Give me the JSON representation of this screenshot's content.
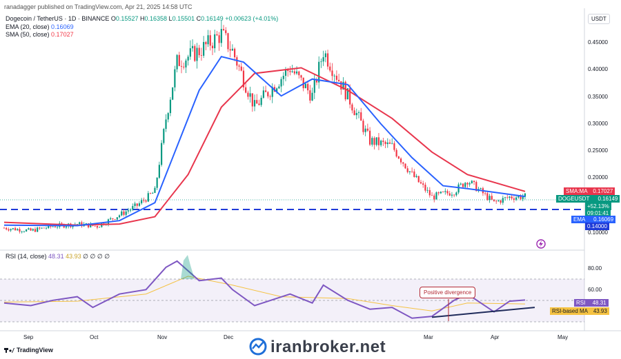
{
  "header": {
    "published_by": "ranadagger published on TradingView.com, Apr 21, 2025 14:58 UTC"
  },
  "legend": {
    "symbol": "Dogecoin / TetherUS · 1D · BINANCE",
    "ohlc_prefix_o": "O",
    "o": "0.15527",
    "ohlc_prefix_h": "H",
    "h": "0.16358",
    "ohlc_prefix_l": "L",
    "l": "0.15501",
    "ohlc_prefix_c": "C",
    "c": "0.16149",
    "change": "+0.00623 (+4.01%)",
    "ema_label": "EMA (20, close)",
    "ema_value": "0.16069",
    "sma_label": "SMA (50, close)",
    "sma_value": "0.17027"
  },
  "rsi_legend": {
    "label": "RSI (14, close)",
    "rsi": "48.31",
    "ma": "43.93",
    "z1": "∅",
    "z2": "∅",
    "z3": "∅",
    "z4": "∅"
  },
  "price_axis": {
    "currency": "USDT",
    "labels": [
      "0.45000",
      "0.40000",
      "0.35000",
      "0.30000",
      "0.25000",
      "0.20000",
      "0.10000"
    ],
    "sma_tag": "SMA:MA",
    "sma_tag_value": "0.17027",
    "symbol_tag": "DOGEUSDT",
    "symbol_tag_value": "0.16149",
    "pct_tag": "+52.13%",
    "time_tag": "09:01:41",
    "ema_tag": "EMA",
    "ema_tag_value": "0.16069",
    "support_tag_value": "0.14000"
  },
  "rsi_axis": {
    "labels": [
      "80.00",
      "60.00"
    ],
    "rsi_tag": "RSI",
    "rsi_tag_value": "48.31",
    "ma_tag": "RSI-based MA",
    "ma_tag_value": "43.93"
  },
  "time_axis": {
    "labels": [
      "Sep",
      "Oct",
      "Nov",
      "Dec",
      "Mar",
      "Apr",
      "May"
    ]
  },
  "annotation": {
    "text": "Positive divergence"
  },
  "footer": {
    "logo": "TradingView",
    "watermark": "iranbroker.net"
  },
  "colors": {
    "up": "#089981",
    "down": "#f23645",
    "ema": "#2962ff",
    "sma": "#e8364d",
    "rsi": "#7e57c2",
    "rsi_ma": "#f5c242",
    "support": "#1f3bd8"
  },
  "chart_data": [
    {
      "type": "candlestick",
      "title": "Dogecoin / TetherUS · 1D · BINANCE",
      "y_axis": "USDT",
      "ylim": [
        0.09,
        0.48
      ],
      "x_ticks": [
        "Sep",
        "Oct",
        "Nov",
        "Dec",
        "Mar",
        "Apr",
        "May"
      ],
      "support_line": 0.14,
      "price_path": [
        [
          "Aug 29",
          0.105
        ],
        [
          "Sep 10",
          0.1
        ],
        [
          "Sep 20",
          0.108
        ],
        [
          "Oct 1",
          0.112
        ],
        [
          "Oct 10",
          0.108
        ],
        [
          "Oct 20",
          0.128
        ],
        [
          "Oct 28",
          0.145
        ],
        [
          "Nov 5",
          0.17
        ],
        [
          "Nov 10",
          0.3
        ],
        [
          "Nov 15",
          0.4
        ],
        [
          "Nov 25",
          0.42
        ],
        [
          "Dec 5",
          0.45
        ],
        [
          "Dec 10",
          0.42
        ],
        [
          "Dec 20",
          0.32
        ],
        [
          "Jan 5",
          0.39
        ],
        [
          "Jan 15",
          0.34
        ],
        [
          "Jan 20",
          0.42
        ],
        [
          "Jan 31",
          0.34
        ],
        [
          "Feb 10",
          0.26
        ],
        [
          "Feb 20",
          0.25
        ],
        [
          "Mar 1",
          0.2
        ],
        [
          "Mar 10",
          0.16
        ],
        [
          "Mar 20",
          0.17
        ],
        [
          "Mar 26",
          0.19
        ],
        [
          "Apr 7",
          0.15
        ],
        [
          "Apr 14",
          0.16
        ],
        [
          "Apr 21",
          0.161
        ]
      ],
      "series": [
        {
          "name": "EMA (20, close)",
          "points": [
            [
              "Aug 29",
              0.11
            ],
            [
              "Oct 1",
              0.109
            ],
            [
              "Oct 20",
              0.118
            ],
            [
              "Nov 5",
              0.15
            ],
            [
              "Nov 15",
              0.25
            ],
            [
              "Nov 25",
              0.35
            ],
            [
              "Dec 5",
              0.41
            ],
            [
              "Dec 15",
              0.4
            ],
            [
              "Jan 1",
              0.34
            ],
            [
              "Jan 15",
              0.37
            ],
            [
              "Jan 31",
              0.36
            ],
            [
              "Feb 15",
              0.29
            ],
            [
              "Mar 1",
              0.23
            ],
            [
              "Mar 15",
              0.18
            ],
            [
              "Mar 26",
              0.175
            ],
            [
              "Apr 21",
              0.161
            ]
          ]
        },
        {
          "name": "SMA (50, close)",
          "points": [
            [
              "Aug 29",
              0.115
            ],
            [
              "Oct 1",
              0.11
            ],
            [
              "Oct 20",
              0.112
            ],
            [
              "Nov 5",
              0.125
            ],
            [
              "Nov 20",
              0.2
            ],
            [
              "Dec 5",
              0.32
            ],
            [
              "Dec 20",
              0.38
            ],
            [
              "Jan 10",
              0.39
            ],
            [
              "Jan 31",
              0.35
            ],
            [
              "Feb 20",
              0.3
            ],
            [
              "Mar 10",
              0.24
            ],
            [
              "Mar 26",
              0.2
            ],
            [
              "Apr 21",
              0.17
            ]
          ]
        }
      ]
    },
    {
      "type": "line",
      "title": "RSI (14, close)",
      "ylim": [
        20,
        95
      ],
      "y_ticks": [
        80,
        60
      ],
      "band": [
        30,
        70
      ],
      "series": [
        {
          "name": "RSI",
          "points": [
            [
              "Aug 29",
              45
            ],
            [
              "Sep 10",
              42
            ],
            [
              "Sep 20",
              48
            ],
            [
              "Oct 1",
              52
            ],
            [
              "Oct 8",
              40
            ],
            [
              "Oct 20",
              55
            ],
            [
              "Nov 1",
              60
            ],
            [
              "Nov 10",
              85
            ],
            [
              "Nov 15",
              92
            ],
            [
              "Nov 25",
              70
            ],
            [
              "Dec 5",
              73
            ],
            [
              "Dec 10",
              60
            ],
            [
              "Dec 20",
              42
            ],
            [
              "Jan 5",
              55
            ],
            [
              "Jan 15",
              45
            ],
            [
              "Jan 20",
              65
            ],
            [
              "Jan 31",
              48
            ],
            [
              "Feb 10",
              38
            ],
            [
              "Feb 20",
              40
            ],
            [
              "Mar 1",
              28
            ],
            [
              "Mar 10",
              30
            ],
            [
              "Mar 20",
              48
            ],
            [
              "Mar 26",
              55
            ],
            [
              "Apr 7",
              35
            ],
            [
              "Apr 14",
              47
            ],
            [
              "Apr 21",
              48.31
            ]
          ]
        },
        {
          "name": "RSI-based MA",
          "points": [
            [
              "Aug 29",
              46
            ],
            [
              "Oct 1",
              47
            ],
            [
              "Nov 1",
              55
            ],
            [
              "Nov 20",
              75
            ],
            [
              "Dec 10",
              65
            ],
            [
              "Jan 1",
              52
            ],
            [
              "Jan 31",
              50
            ],
            [
              "Feb 20",
              42
            ],
            [
              "Mar 10",
              36
            ],
            [
              "Mar 26",
              45
            ],
            [
              "Apr 21",
              43.93
            ]
          ]
        }
      ],
      "trendline": [
        [
          "Mar 10",
          29
        ],
        [
          "Apr 21",
          40
        ]
      ]
    }
  ]
}
